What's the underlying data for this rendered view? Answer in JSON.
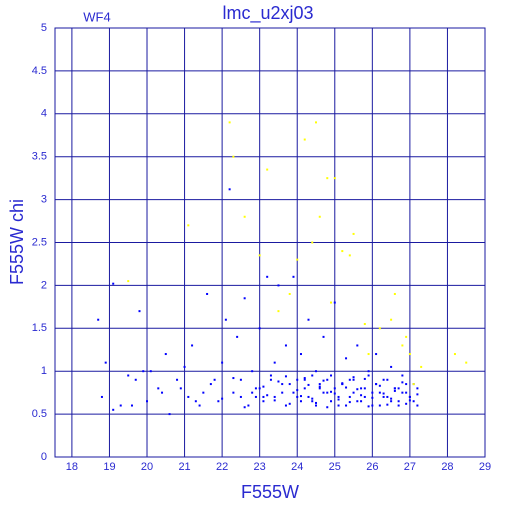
{
  "chart_data": {
    "type": "scatter",
    "title": "lmc_u2xj03",
    "annotation": "WF4",
    "x_label": "F555W",
    "y_label": "F555W chi",
    "xlim": [
      17.55,
      29
    ],
    "ylim": [
      0,
      5
    ],
    "xticks": [
      18,
      19,
      20,
      21,
      22,
      23,
      24,
      25,
      26,
      27,
      28,
      29
    ],
    "yticks": [
      0,
      0.5,
      1,
      1.5,
      2,
      2.5,
      3,
      3.5,
      4,
      4.5,
      5
    ],
    "grid": true,
    "series": [
      {
        "color": "#0000ff",
        "x": [
          18.7,
          18.8,
          18.9,
          19.1,
          19.1,
          19.3,
          19.5,
          19.6,
          19.7,
          19.8,
          20.0,
          20.1,
          20.3,
          20.5,
          20.6,
          20.8,
          21.0,
          21.1,
          21.2,
          21.4,
          21.6,
          21.7,
          21.9,
          22.0,
          22.1,
          22.2,
          22.3,
          22.4,
          22.5,
          22.6,
          22.7,
          22.8,
          22.9,
          23.0,
          23.1,
          23.2,
          23.3,
          23.4,
          23.5,
          23.6,
          23.7,
          23.8,
          23.9,
          24.0,
          24.1,
          24.2,
          24.3,
          24.4,
          24.5,
          24.6,
          24.7,
          24.8,
          24.9,
          25.0,
          25.1,
          25.2,
          25.3,
          25.4,
          25.5,
          25.6,
          25.7,
          25.8,
          25.9,
          26.0,
          26.1,
          26.2,
          26.3,
          26.4,
          26.5,
          26.6,
          26.7,
          26.8,
          26.9,
          27.0,
          27.1,
          27.2,
          23.0,
          23.1,
          23.3,
          23.4,
          23.6,
          23.7,
          23.9,
          24.0,
          24.1,
          24.2,
          24.3,
          24.4,
          24.5,
          24.6,
          24.7,
          24.8,
          24.9,
          25.0,
          25.1,
          25.2,
          25.3,
          25.4,
          25.5,
          25.6,
          25.7,
          25.8,
          25.9,
          26.0,
          26.1,
          26.2,
          26.3,
          26.4,
          26.5,
          26.6,
          26.7,
          26.8,
          26.9,
          27.0,
          27.1,
          27.2,
          23.2,
          23.5,
          23.8,
          24.0,
          24.2,
          24.4,
          24.6,
          24.8,
          25.0,
          25.2,
          25.4,
          25.6,
          25.8,
          26.0,
          26.2,
          26.4,
          26.6,
          26.8,
          27.0,
          27.2,
          22.5,
          22.8,
          23.1,
          23.4,
          23.7,
          24.1,
          24.3,
          24.5,
          24.7,
          24.9,
          25.1,
          25.3,
          25.5,
          25.7,
          25.9,
          26.1,
          26.3,
          26.5,
          26.7,
          26.9,
          21.5,
          22.0,
          22.3,
          22.6,
          22.9,
          20.9,
          21.3,
          21.8,
          20.4,
          19.9
        ],
        "values": [
          1.6,
          0.7,
          1.1,
          2.02,
          0.55,
          0.6,
          0.95,
          0.6,
          0.9,
          1.7,
          0.65,
          1.0,
          0.8,
          1.2,
          0.5,
          0.9,
          1.05,
          0.7,
          1.3,
          0.6,
          1.9,
          0.85,
          0.65,
          1.1,
          1.6,
          3.12,
          0.75,
          1.4,
          0.9,
          1.85,
          0.6,
          1.0,
          0.8,
          1.5,
          0.7,
          2.1,
          0.95,
          1.1,
          2.0,
          0.75,
          1.3,
          0.85,
          2.1,
          0.7,
          1.2,
          0.9,
          1.6,
          0.65,
          1.0,
          0.8,
          1.4,
          0.75,
          0.95,
          1.8,
          0.6,
          0.85,
          1.15,
          0.7,
          0.9,
          1.3,
          0.65,
          0.8,
          1.0,
          0.75,
          1.2,
          0.6,
          0.9,
          0.7,
          1.05,
          0.8,
          0.65,
          0.95,
          0.75,
          0.7,
          0.85,
          0.6,
          0.8,
          0.65,
          0.9,
          0.7,
          0.85,
          0.6,
          0.75,
          0.9,
          0.65,
          0.8,
          0.7,
          0.95,
          0.6,
          0.85,
          0.75,
          0.9,
          0.65,
          0.8,
          0.7,
          0.85,
          0.6,
          0.9,
          0.75,
          0.65,
          0.8,
          0.7,
          0.95,
          0.6,
          0.85,
          0.75,
          0.7,
          0.9,
          0.65,
          0.8,
          0.6,
          0.75,
          0.85,
          0.7,
          0.65,
          0.8,
          0.72,
          0.88,
          0.62,
          0.78,
          0.92,
          0.68,
          0.82,
          0.58,
          0.74,
          0.86,
          0.64,
          0.79,
          0.91,
          0.69,
          0.83,
          0.61,
          0.77,
          0.87,
          0.66,
          0.73,
          0.7,
          0.75,
          0.82,
          0.66,
          0.94,
          0.71,
          0.84,
          0.63,
          0.89,
          0.76,
          0.67,
          0.81,
          0.93,
          0.72,
          0.59,
          0.85,
          0.74,
          0.68,
          0.8,
          0.62,
          0.75,
          0.68,
          0.92,
          0.58,
          0.7,
          0.8,
          0.65,
          0.9,
          0.75,
          1.0
        ]
      },
      {
        "color": "#ffff00",
        "x": [
          22.2,
          22.3,
          22.6,
          23.2,
          23.0,
          24.2,
          24.5,
          24.4,
          24.8,
          25.0,
          24.6,
          25.2,
          25.4,
          23.8,
          24.0,
          25.5,
          26.2,
          26.5,
          26.8,
          27.0,
          27.3,
          28.2,
          28.5,
          26.6,
          25.8,
          24.9,
          23.5,
          19.5,
          21.1,
          27.1,
          26.9,
          25.9
        ],
        "values": [
          3.9,
          3.5,
          2.8,
          3.35,
          2.35,
          3.7,
          3.9,
          2.5,
          3.25,
          3.25,
          2.8,
          2.4,
          2.35,
          1.9,
          2.3,
          2.6,
          1.5,
          1.6,
          1.3,
          1.2,
          1.05,
          1.2,
          1.1,
          1.9,
          1.55,
          1.8,
          1.7,
          2.05,
          2.7,
          0.85,
          1.4,
          1.2
        ]
      }
    ]
  }
}
